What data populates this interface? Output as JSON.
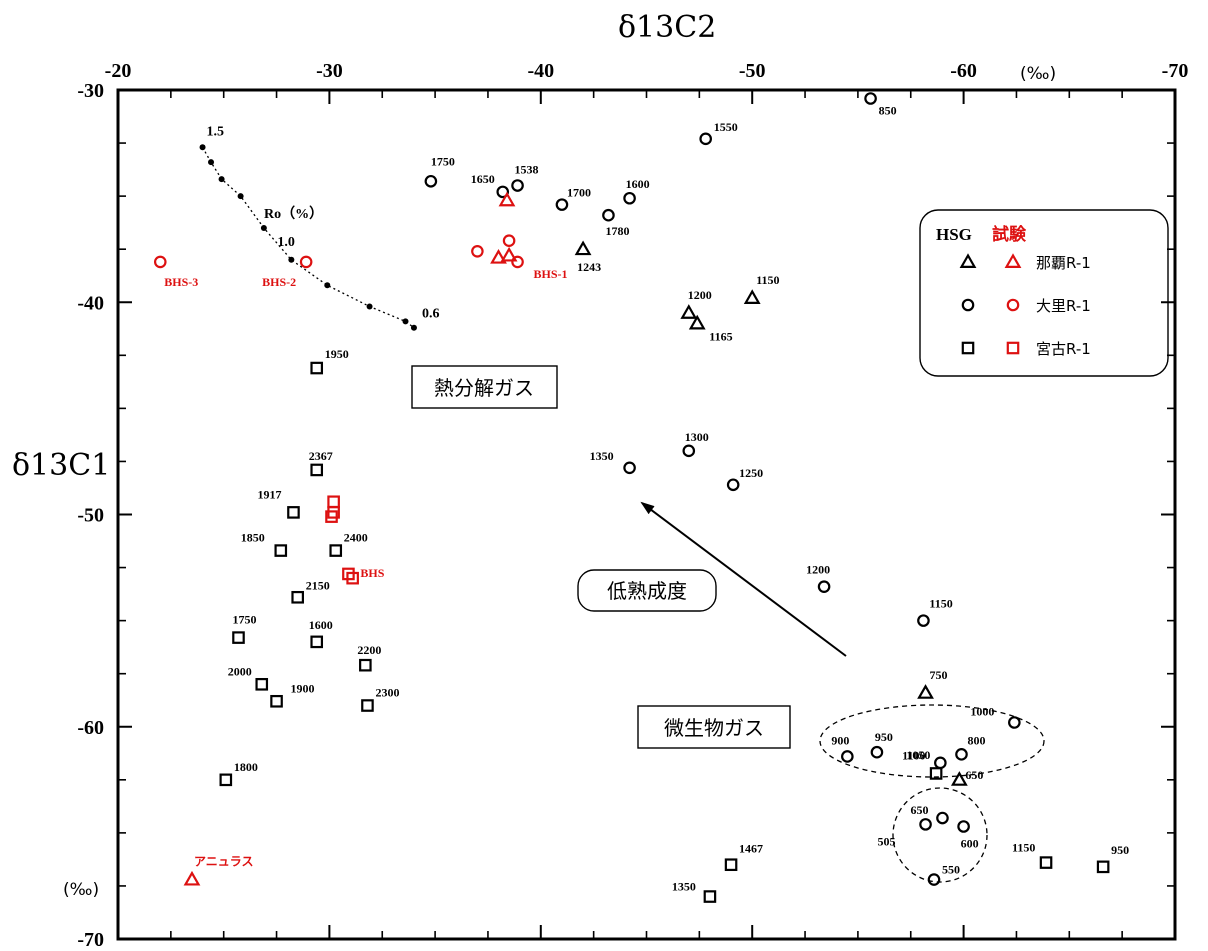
{
  "chart_data": {
    "type": "scatter",
    "xlabel": "δ13C2",
    "ylabel": "δ13C1",
    "x_unit": "(‰)",
    "y_unit": "(‰)",
    "x_axis_position": "top",
    "xlim": [
      -20,
      -70
    ],
    "ylim": [
      -70,
      -30
    ],
    "x_ticks": [
      "-20",
      "-30",
      "-40",
      "-50",
      "-60",
      "-70"
    ],
    "y_ticks": [
      "-30",
      "-40",
      "-50",
      "-60",
      "-70"
    ],
    "grid": false,
    "legend": {
      "position": "right",
      "header_left": "HSG",
      "header_right": "試験",
      "entries": [
        "那覇R-1",
        "大里R-1",
        "宮古R-1"
      ]
    },
    "colors": {
      "hsg": "#000000",
      "test": "#dd1111"
    },
    "series": [
      {
        "name": "那覇R-1",
        "source": "HSG",
        "marker": "triangle",
        "color": "#000000",
        "points": [
          {
            "x": -42.0,
            "y": -37.5,
            "label": "1243"
          },
          {
            "x": -47.0,
            "y": -40.5,
            "label": "1200"
          },
          {
            "x": -47.4,
            "y": -41.0,
            "label": "1165"
          },
          {
            "x": -50.0,
            "y": -39.8,
            "label": "1150"
          },
          {
            "x": -58.2,
            "y": -58.4,
            "label": "750"
          },
          {
            "x": -59.8,
            "y": -62.5,
            "label": "650"
          }
        ]
      },
      {
        "name": "大里R-1",
        "source": "HSG",
        "marker": "circle",
        "color": "#000000",
        "points": [
          {
            "x": -55.6,
            "y": -30.4,
            "label": "850"
          },
          {
            "x": -47.8,
            "y": -32.3,
            "label": "1550"
          },
          {
            "x": -34.8,
            "y": -34.3,
            "label": "1750"
          },
          {
            "x": -38.2,
            "y": -34.8,
            "label": "1650"
          },
          {
            "x": -38.9,
            "y": -34.5,
            "label": "1538"
          },
          {
            "x": -41.0,
            "y": -35.4,
            "label": "1700"
          },
          {
            "x": -44.2,
            "y": -35.1,
            "label": "1600"
          },
          {
            "x": -43.2,
            "y": -35.9,
            "label": "1780"
          },
          {
            "x": -47.0,
            "y": -47.0,
            "label": "1300"
          },
          {
            "x": -44.2,
            "y": -47.8,
            "label": "1350"
          },
          {
            "x": -49.1,
            "y": -48.6,
            "label": "1250"
          },
          {
            "x": -53.4,
            "y": -53.4,
            "label": "1200"
          },
          {
            "x": -58.1,
            "y": -55.0,
            "label": "1150"
          },
          {
            "x": -62.4,
            "y": -59.8,
            "label": "1000"
          },
          {
            "x": -54.5,
            "y": -61.4,
            "label": "900"
          },
          {
            "x": -55.9,
            "y": -61.2,
            "label": "950"
          },
          {
            "x": -59.9,
            "y": -61.3,
            "label": "800"
          },
          {
            "x": -58.9,
            "y": -61.7,
            "label": "1050"
          },
          {
            "x": -58.2,
            "y": -64.6,
            "label": "505"
          },
          {
            "x": -59.0,
            "y": -64.3,
            "label": "650"
          },
          {
            "x": -60.0,
            "y": -64.7,
            "label": "600"
          },
          {
            "x": -58.6,
            "y": -67.2,
            "label": "550"
          }
        ]
      },
      {
        "name": "宮古R-1",
        "source": "HSG",
        "marker": "square",
        "color": "#000000",
        "points": [
          {
            "x": -29.4,
            "y": -43.1,
            "label": "1950"
          },
          {
            "x": -29.4,
            "y": -47.9,
            "label": "2367"
          },
          {
            "x": -28.3,
            "y": -49.9,
            "label": "1917"
          },
          {
            "x": -27.7,
            "y": -51.7,
            "label": "1850"
          },
          {
            "x": -30.3,
            "y": -51.7,
            "label": "2400"
          },
          {
            "x": -28.5,
            "y": -53.9,
            "label": "2150"
          },
          {
            "x": -25.7,
            "y": -55.8,
            "label": "1750"
          },
          {
            "x": -29.4,
            "y": -56.0,
            "label": "1600"
          },
          {
            "x": -31.7,
            "y": -57.1,
            "label": "2200"
          },
          {
            "x": -26.8,
            "y": -58.0,
            "label": "2000"
          },
          {
            "x": -27.5,
            "y": -58.8,
            "label": "1900"
          },
          {
            "x": -31.8,
            "y": -59.0,
            "label": "2300"
          },
          {
            "x": -25.1,
            "y": -62.5,
            "label": "1800"
          },
          {
            "x": -58.7,
            "y": -62.2,
            "label": "1100"
          },
          {
            "x": -49.0,
            "y": -66.5,
            "label": "1467"
          },
          {
            "x": -48.0,
            "y": -68.0,
            "label": "1350"
          },
          {
            "x": -63.9,
            "y": -66.4,
            "label": "1150"
          },
          {
            "x": -66.6,
            "y": -66.6,
            "label": "950"
          }
        ]
      },
      {
        "name": "那覇R-1",
        "source": "試験",
        "marker": "triangle",
        "color": "#dd1111",
        "points": [
          {
            "x": -38.4,
            "y": -35.2,
            "label": ""
          },
          {
            "x": -38.0,
            "y": -37.9,
            "label": ""
          },
          {
            "x": -38.5,
            "y": -37.8,
            "label": ""
          },
          {
            "x": -23.5,
            "y": -67.2,
            "label": "アニュラス"
          }
        ]
      },
      {
        "name": "大里R-1",
        "source": "試験",
        "marker": "circle",
        "color": "#dd1111",
        "points": [
          {
            "x": -22.0,
            "y": -38.1,
            "label": "BHS-3"
          },
          {
            "x": -28.9,
            "y": -38.1,
            "label": "BHS-2"
          },
          {
            "x": -37.0,
            "y": -37.6,
            "label": ""
          },
          {
            "x": -38.5,
            "y": -37.1,
            "label": ""
          },
          {
            "x": -38.9,
            "y": -38.1,
            "label": "BHS-1"
          }
        ]
      },
      {
        "name": "宮古R-1",
        "source": "試験",
        "marker": "square",
        "color": "#dd1111",
        "points": [
          {
            "x": -30.2,
            "y": -49.4,
            "label": ""
          },
          {
            "x": -30.2,
            "y": -49.9,
            "label": ""
          },
          {
            "x": -30.1,
            "y": -50.1,
            "label": ""
          },
          {
            "x": -30.9,
            "y": -52.8,
            "label": "BHS"
          },
          {
            "x": -31.1,
            "y": -53.0,
            "label": ""
          }
        ]
      }
    ],
    "ro_curve": {
      "label": "Ro（%）",
      "marked_values": [
        "1.5",
        "1.0",
        "0.6"
      ],
      "points": [
        {
          "x": -24.0,
          "y": -32.7
        },
        {
          "x": -24.4,
          "y": -33.4
        },
        {
          "x": -24.9,
          "y": -34.2
        },
        {
          "x": -25.8,
          "y": -35.0
        },
        {
          "x": -26.9,
          "y": -36.5
        },
        {
          "x": -28.2,
          "y": -38.0
        },
        {
          "x": -29.9,
          "y": -39.2
        },
        {
          "x": -31.9,
          "y": -40.2
        },
        {
          "x": -33.6,
          "y": -40.9
        },
        {
          "x": -34.0,
          "y": -41.2
        }
      ]
    },
    "annotations": {
      "thermal_gas": "熱分解ガス",
      "low_maturity": "低熟成度",
      "microbial_gas": "微生物ガス"
    }
  }
}
